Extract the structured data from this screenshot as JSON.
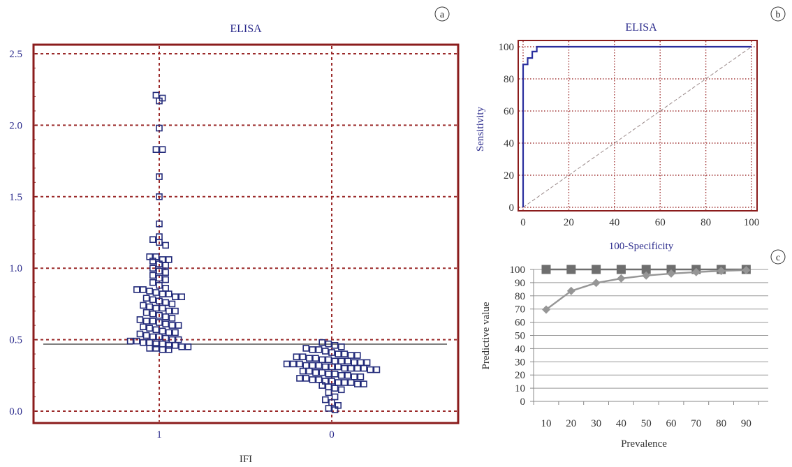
{
  "chart_data": [
    {
      "panel_label": "a",
      "type": "scatter",
      "title": "ELISA",
      "xlabel": "IFI",
      "categories": [
        "1",
        "0"
      ],
      "ylim": [
        0.0,
        2.5
      ],
      "y_ticks": [
        "0.0",
        "0.5",
        "1.0",
        "1.5",
        "2.0",
        "2.5"
      ],
      "cutoff": 0.47,
      "grid": true,
      "series": [
        {
          "category": "1",
          "values": [
            2.21,
            2.19,
            2.17,
            1.98,
            1.83,
            1.83,
            1.64,
            1.5,
            1.31,
            1.22,
            1.2,
            1.18,
            1.16,
            1.08,
            1.08,
            1.06,
            1.06,
            1.05,
            1.03,
            1.02,
            1.0,
            0.98,
            0.97,
            0.95,
            0.93,
            0.92,
            0.9,
            0.88,
            0.86,
            0.85,
            0.85,
            0.84,
            0.83,
            0.82,
            0.82,
            0.8,
            0.8,
            0.79,
            0.78,
            0.77,
            0.76,
            0.75,
            0.74,
            0.73,
            0.72,
            0.72,
            0.7,
            0.7,
            0.69,
            0.68,
            0.67,
            0.66,
            0.65,
            0.64,
            0.63,
            0.63,
            0.62,
            0.61,
            0.6,
            0.6,
            0.59,
            0.58,
            0.57,
            0.56,
            0.55,
            0.55,
            0.54,
            0.53,
            0.52,
            0.52,
            0.51,
            0.5,
            0.5,
            0.49,
            0.49,
            0.48,
            0.48,
            0.47,
            0.47,
            0.46,
            0.46,
            0.45,
            0.45,
            0.44,
            0.44,
            0.43,
            0.43
          ]
        },
        {
          "category": "0",
          "values": [
            0.48,
            0.47,
            0.46,
            0.45,
            0.44,
            0.43,
            0.43,
            0.42,
            0.41,
            0.4,
            0.4,
            0.39,
            0.39,
            0.38,
            0.38,
            0.37,
            0.37,
            0.36,
            0.36,
            0.35,
            0.35,
            0.35,
            0.34,
            0.34,
            0.34,
            0.33,
            0.33,
            0.33,
            0.32,
            0.32,
            0.32,
            0.31,
            0.31,
            0.31,
            0.3,
            0.3,
            0.3,
            0.3,
            0.29,
            0.29,
            0.28,
            0.28,
            0.27,
            0.27,
            0.26,
            0.26,
            0.25,
            0.25,
            0.24,
            0.24,
            0.23,
            0.23,
            0.22,
            0.22,
            0.21,
            0.21,
            0.2,
            0.2,
            0.2,
            0.19,
            0.19,
            0.18,
            0.17,
            0.16,
            0.15,
            0.13,
            0.1,
            0.08,
            0.06,
            0.04,
            0.02,
            0.01
          ]
        }
      ]
    },
    {
      "panel_label": "b",
      "type": "line",
      "title": "ELISA",
      "xlabel": "100-Specificity",
      "ylabel": "Sensitivity",
      "xlim": [
        0,
        100
      ],
      "ylim": [
        0,
        100
      ],
      "x_ticks": [
        "0",
        "20",
        "40",
        "60",
        "80",
        "100"
      ],
      "y_ticks": [
        "0",
        "20",
        "40",
        "60",
        "80",
        "100"
      ],
      "grid": true,
      "series": [
        {
          "role": "roc",
          "x": [
            0,
            0,
            0,
            0,
            2,
            2,
            4,
            4,
            6,
            6,
            100
          ],
          "y": [
            0,
            89,
            89,
            89,
            89,
            93,
            93,
            97,
            97,
            100,
            100
          ]
        },
        {
          "role": "diagonal",
          "x": [
            0,
            100
          ],
          "y": [
            0,
            100
          ]
        }
      ]
    },
    {
      "panel_label": "c",
      "type": "line",
      "xlabel": "Prevalence",
      "ylabel": "Predictive value",
      "categories": [
        "10",
        "20",
        "30",
        "40",
        "50",
        "60",
        "70",
        "80",
        "90"
      ],
      "ylim": [
        0,
        100
      ],
      "y_ticks": [
        "0",
        "10",
        "20",
        "30",
        "40",
        "50",
        "60",
        "70",
        "80",
        "90",
        "100"
      ],
      "grid": true,
      "series": [
        {
          "marker": "square",
          "color": "#6e6e6e",
          "values": [
            100,
            100,
            100,
            100,
            100,
            100,
            100,
            100,
            100
          ]
        },
        {
          "marker": "diamond",
          "color": "#969696",
          "values": [
            69.6,
            83.7,
            89.8,
            93.2,
            95.4,
            96.9,
            98.0,
            98.9,
            99.5
          ]
        }
      ]
    }
  ]
}
